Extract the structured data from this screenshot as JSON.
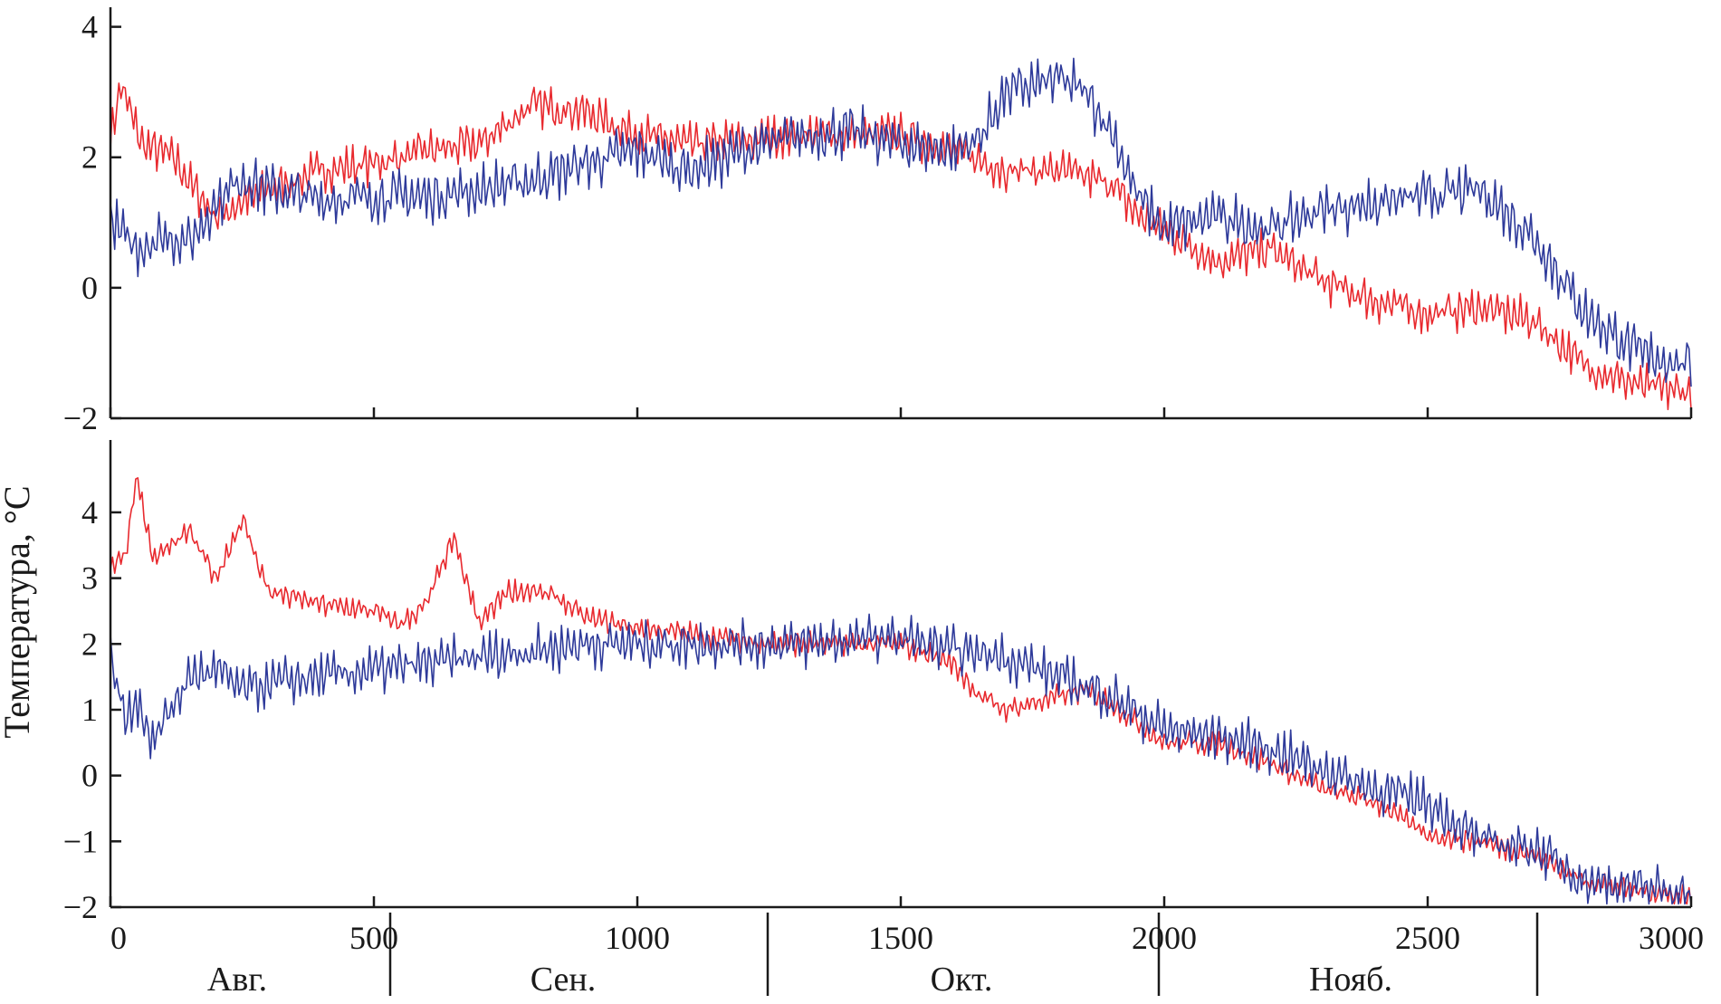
{
  "colors": {
    "red_series": "#e8292e",
    "blue_series": "#2e3a9a",
    "axis": "#1a1a1a"
  },
  "ylabel": "Температура, °C",
  "months": [
    "Авг.",
    "Сен.",
    "Окт.",
    "Нояб."
  ],
  "chart_data": [
    {
      "type": "line",
      "panel": "top",
      "xlabel": "",
      "ylabel": "Температура, °C",
      "xlim": [
        0,
        3000
      ],
      "ylim": [
        -2,
        4.3
      ],
      "x_ticks": [
        0,
        500,
        1000,
        1500,
        2000,
        2500,
        3000
      ],
      "y_ticks": [
        -2,
        0,
        2,
        4
      ],
      "y_tick_labels": [
        "−2",
        "0",
        "2",
        "4"
      ],
      "series": [
        {
          "name": "red",
          "color": "#e8292e",
          "noise": 0.35,
          "points": [
            [
              0,
              2.3
            ],
            [
              20,
              3.1
            ],
            [
              60,
              2.2
            ],
            [
              120,
              2.0
            ],
            [
              160,
              1.5
            ],
            [
              200,
              1.1
            ],
            [
              300,
              1.5
            ],
            [
              400,
              1.8
            ],
            [
              500,
              1.9
            ],
            [
              600,
              2.1
            ],
            [
              700,
              2.2
            ],
            [
              800,
              2.8
            ],
            [
              900,
              2.7
            ],
            [
              1000,
              2.35
            ],
            [
              1100,
              2.2
            ],
            [
              1200,
              2.25
            ],
            [
              1300,
              2.35
            ],
            [
              1400,
              2.35
            ],
            [
              1500,
              2.35
            ],
            [
              1600,
              2.1
            ],
            [
              1700,
              1.8
            ],
            [
              1800,
              1.8
            ],
            [
              1900,
              1.6
            ],
            [
              1950,
              1.1
            ],
            [
              2000,
              0.9
            ],
            [
              2100,
              0.4
            ],
            [
              2200,
              0.6
            ],
            [
              2300,
              0.1
            ],
            [
              2400,
              -0.2
            ],
            [
              2500,
              -0.4
            ],
            [
              2600,
              -0.3
            ],
            [
              2700,
              -0.5
            ],
            [
              2800,
              -1.2
            ],
            [
              2900,
              -1.5
            ],
            [
              3000,
              -1.6
            ]
          ]
        },
        {
          "name": "blue",
          "color": "#2e3a9a",
          "noise": 0.45,
          "points": [
            [
              0,
              1.0
            ],
            [
              50,
              0.6
            ],
            [
              100,
              0.8
            ],
            [
              150,
              0.7
            ],
            [
              200,
              1.3
            ],
            [
              250,
              1.7
            ],
            [
              300,
              1.5
            ],
            [
              400,
              1.35
            ],
            [
              500,
              1.4
            ],
            [
              600,
              1.4
            ],
            [
              700,
              1.5
            ],
            [
              800,
              1.65
            ],
            [
              900,
              1.9
            ],
            [
              1000,
              2.1
            ],
            [
              1100,
              1.8
            ],
            [
              1200,
              2.1
            ],
            [
              1300,
              2.3
            ],
            [
              1400,
              2.4
            ],
            [
              1500,
              2.2
            ],
            [
              1600,
              2.1
            ],
            [
              1650,
              2.3
            ],
            [
              1700,
              3.0
            ],
            [
              1750,
              3.1
            ],
            [
              1800,
              3.2
            ],
            [
              1850,
              3.0
            ],
            [
              1900,
              2.4
            ],
            [
              1950,
              1.4
            ],
            [
              2000,
              0.9
            ],
            [
              2100,
              1.1
            ],
            [
              2200,
              0.9
            ],
            [
              2300,
              1.2
            ],
            [
              2400,
              1.3
            ],
            [
              2500,
              1.4
            ],
            [
              2600,
              1.5
            ],
            [
              2700,
              0.8
            ],
            [
              2800,
              -0.4
            ],
            [
              2900,
              -1.0
            ],
            [
              3000,
              -1.2
            ]
          ]
        }
      ]
    },
    {
      "type": "line",
      "panel": "bottom",
      "xlabel": "",
      "ylabel": "Температура, °C",
      "xlim": [
        0,
        3000
      ],
      "ylim": [
        -2,
        5.1
      ],
      "x_ticks": [
        0,
        500,
        1000,
        1500,
        2000,
        2500,
        3000
      ],
      "x_tick_labels": [
        "0",
        "500",
        "1000",
        "1500",
        "2000",
        "2500",
        "3000"
      ],
      "y_ticks": [
        -2,
        -1,
        0,
        1,
        2,
        3,
        4
      ],
      "y_tick_labels": [
        "−2",
        "−1",
        "0",
        "1",
        "2",
        "3",
        "4"
      ],
      "series": [
        {
          "name": "red",
          "color": "#e8292e",
          "noise": 0.2,
          "points": [
            [
              0,
              3.2
            ],
            [
              30,
              3.4
            ],
            [
              50,
              4.6
            ],
            [
              80,
              3.3
            ],
            [
              100,
              3.4
            ],
            [
              150,
              3.7
            ],
            [
              200,
              3.0
            ],
            [
              250,
              3.9
            ],
            [
              300,
              2.8
            ],
            [
              350,
              2.7
            ],
            [
              400,
              2.6
            ],
            [
              500,
              2.5
            ],
            [
              550,
              2.3
            ],
            [
              600,
              2.6
            ],
            [
              650,
              3.6
            ],
            [
              700,
              2.3
            ],
            [
              750,
              2.8
            ],
            [
              800,
              2.8
            ],
            [
              850,
              2.7
            ],
            [
              900,
              2.4
            ],
            [
              1000,
              2.25
            ],
            [
              1100,
              2.15
            ],
            [
              1200,
              2.05
            ],
            [
              1300,
              2.0
            ],
            [
              1400,
              2.0
            ],
            [
              1500,
              2.0
            ],
            [
              1600,
              1.7
            ],
            [
              1650,
              1.2
            ],
            [
              1700,
              1.0
            ],
            [
              1800,
              1.2
            ],
            [
              1850,
              1.3
            ],
            [
              1900,
              1.1
            ],
            [
              1950,
              0.8
            ],
            [
              2000,
              0.5
            ],
            [
              2100,
              0.5
            ],
            [
              2200,
              0.2
            ],
            [
              2300,
              -0.2
            ],
            [
              2400,
              -0.4
            ],
            [
              2500,
              -0.9
            ],
            [
              2600,
              -1.0
            ],
            [
              2700,
              -1.2
            ],
            [
              2800,
              -1.6
            ],
            [
              2900,
              -1.75
            ],
            [
              3000,
              -1.85
            ]
          ]
        },
        {
          "name": "blue",
          "color": "#2e3a9a",
          "noise": 0.4,
          "points": [
            [
              0,
              1.8
            ],
            [
              30,
              0.8
            ],
            [
              50,
              1.2
            ],
            [
              80,
              0.5
            ],
            [
              100,
              0.8
            ],
            [
              150,
              1.5
            ],
            [
              200,
              1.6
            ],
            [
              250,
              1.3
            ],
            [
              300,
              1.4
            ],
            [
              400,
              1.5
            ],
            [
              500,
              1.6
            ],
            [
              600,
              1.7
            ],
            [
              700,
              1.8
            ],
            [
              800,
              1.9
            ],
            [
              900,
              2.0
            ],
            [
              1000,
              2.0
            ],
            [
              1100,
              2.0
            ],
            [
              1200,
              2.0
            ],
            [
              1300,
              2.0
            ],
            [
              1400,
              2.05
            ],
            [
              1500,
              2.1
            ],
            [
              1600,
              1.9
            ],
            [
              1700,
              1.8
            ],
            [
              1800,
              1.5
            ],
            [
              1900,
              1.2
            ],
            [
              2000,
              0.7
            ],
            [
              2100,
              0.6
            ],
            [
              2200,
              0.4
            ],
            [
              2300,
              0.1
            ],
            [
              2400,
              -0.2
            ],
            [
              2500,
              -0.4
            ],
            [
              2600,
              -1.0
            ],
            [
              2700,
              -1.1
            ],
            [
              2800,
              -1.6
            ],
            [
              2900,
              -1.7
            ],
            [
              3000,
              -1.8
            ]
          ]
        }
      ]
    }
  ]
}
